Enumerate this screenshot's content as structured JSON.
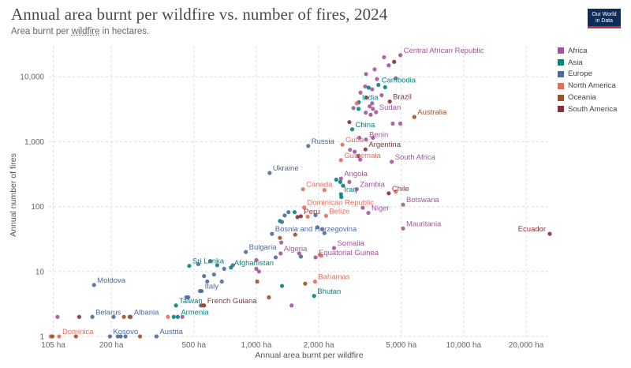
{
  "header": {
    "title": "Annual area burnt per wildfire vs. number of fires, 2024",
    "subtitle_pre": "Area burnt per ",
    "subtitle_link": "wildfire",
    "subtitle_post": " in hectares.",
    "logo_line1": "Our World",
    "logo_line2": "in Data"
  },
  "legend": [
    {
      "name": "Africa",
      "color": "#a2559c"
    },
    {
      "name": "Asia",
      "color": "#00847e"
    },
    {
      "name": "Europe",
      "color": "#4c6a9c"
    },
    {
      "name": "North America",
      "color": "#e56e5a"
    },
    {
      "name": "Oceania",
      "color": "#9a5129"
    },
    {
      "name": "South America",
      "color": "#883039"
    }
  ],
  "chart_data": {
    "type": "scatter",
    "title": "Annual area burnt per wildfire vs. number of fires, 2024",
    "xlabel": "Annual area burnt per wildfire",
    "ylabel": "Annual number of fires",
    "x_scale": "log",
    "y_scale": "log",
    "xlim": [
      100,
      26000
    ],
    "ylim": [
      1,
      30000
    ],
    "grid": true,
    "legend_position": "right",
    "x_ticks": [
      {
        "value": 105,
        "label": "105 ha"
      },
      {
        "value": 200,
        "label": "200 ha"
      },
      {
        "value": 500,
        "label": "500 ha"
      },
      {
        "value": 1000,
        "label": "1,000 ha"
      },
      {
        "value": 2000,
        "label": "2,000 ha"
      },
      {
        "value": 5000,
        "label": "5,000 ha"
      },
      {
        "value": 10000,
        "label": "10,000 ha"
      },
      {
        "value": 20000,
        "label": "20,000 ha"
      }
    ],
    "y_ticks": [
      {
        "value": 1,
        "label": "1"
      },
      {
        "value": 10,
        "label": "10"
      },
      {
        "value": 100,
        "label": "100"
      },
      {
        "value": 1000,
        "label": "1,000"
      },
      {
        "value": 10000,
        "label": "10,000"
      }
    ],
    "points": [
      {
        "label": "Central African Republic",
        "region": "Africa",
        "x": 4950,
        "y": 21500,
        "show": true
      },
      {
        "label": "Cambodia",
        "region": "Asia",
        "x": 3880,
        "y": 7500,
        "show": true
      },
      {
        "label": "Brazil",
        "region": "South America",
        "x": 4400,
        "y": 4150,
        "show": true
      },
      {
        "label": "India",
        "region": "Asia",
        "x": 3120,
        "y": 4050,
        "show": true
      },
      {
        "label": "Australia",
        "region": "Oceania",
        "x": 5780,
        "y": 2400,
        "show": true
      },
      {
        "label": "Sudan",
        "region": "Africa",
        "x": 3780,
        "y": 2850,
        "show": true
      },
      {
        "label": "China",
        "region": "Asia",
        "x": 2900,
        "y": 1550,
        "show": true
      },
      {
        "label": "Benin",
        "region": "Africa",
        "x": 3380,
        "y": 1080,
        "show": true
      },
      {
        "label": "Guba",
        "region": "North America",
        "x": 2600,
        "y": 900,
        "show": true
      },
      {
        "label": "Russia",
        "region": "Europe",
        "x": 1780,
        "y": 860,
        "show": true
      },
      {
        "label": "Argentina",
        "region": "South America",
        "x": 3360,
        "y": 760,
        "show": true
      },
      {
        "label": "Guatemala",
        "region": "North America",
        "x": 2560,
        "y": 520,
        "show": true
      },
      {
        "label": "South Africa",
        "region": "Africa",
        "x": 4500,
        "y": 490,
        "show": true
      },
      {
        "label": "Ukraine",
        "region": "Europe",
        "x": 1160,
        "y": 330,
        "show": true
      },
      {
        "label": "Angola",
        "region": "Africa",
        "x": 2560,
        "y": 270,
        "show": true
      },
      {
        "label": "Canada",
        "region": "North America",
        "x": 1680,
        "y": 185,
        "show": true
      },
      {
        "label": "Iraq",
        "region": "Asia",
        "x": 2560,
        "y": 155,
        "show": true
      },
      {
        "label": "Zambia",
        "region": "Africa",
        "x": 3050,
        "y": 185,
        "show": true
      },
      {
        "label": "Chile",
        "region": "South America",
        "x": 4350,
        "y": 160,
        "show": true
      },
      {
        "label": "Botswana",
        "region": "Africa",
        "x": 5100,
        "y": 107,
        "show": true
      },
      {
        "label": "Dominican Republic",
        "region": "North America",
        "x": 1700,
        "y": 97,
        "show": true
      },
      {
        "label": "Niger",
        "region": "Africa",
        "x": 3470,
        "y": 80,
        "show": true
      },
      {
        "label": "Peru",
        "region": "South America",
        "x": 1640,
        "y": 71,
        "show": true
      },
      {
        "label": "Belize",
        "region": "North America",
        "x": 2170,
        "y": 72,
        "show": true
      },
      {
        "label": "Mauritania",
        "region": "Africa",
        "x": 5100,
        "y": 46,
        "show": true
      },
      {
        "label": "Ecuador",
        "region": "South America",
        "x": 26000,
        "y": 38,
        "show": true
      },
      {
        "label": "Bosnia and Herzegovina",
        "region": "Europe",
        "x": 1190,
        "y": 38,
        "show": true
      },
      {
        "label": "Somalia",
        "region": "Africa",
        "x": 2370,
        "y": 23,
        "show": true
      },
      {
        "label": "Algeria",
        "region": "Africa",
        "x": 1310,
        "y": 19,
        "show": true
      },
      {
        "label": "Equatorial Guinea",
        "region": "Africa",
        "x": 1930,
        "y": 16.5,
        "show": true
      },
      {
        "label": "Bulgaria",
        "region": "Europe",
        "x": 890,
        "y": 20,
        "show": true
      },
      {
        "label": "Sri Lanka",
        "region": "Asia",
        "x": 475,
        "y": 12.2,
        "show": true
      },
      {
        "label": "Afghanistan",
        "region": "Asia",
        "x": 755,
        "y": 11.5,
        "show": true
      },
      {
        "label": "Bahamas",
        "region": "North America",
        "x": 1920,
        "y": 7,
        "show": true
      },
      {
        "label": "Moldova",
        "region": "Europe",
        "x": 165,
        "y": 6.2,
        "show": true
      },
      {
        "label": "Italy",
        "region": "Europe",
        "x": 545,
        "y": 5,
        "show": true
      },
      {
        "label": "Bhutan",
        "region": "Asia",
        "x": 1900,
        "y": 4.2,
        "show": true
      },
      {
        "label": "Taiwan",
        "region": "Asia",
        "x": 410,
        "y": 3,
        "show": true
      },
      {
        "label": "French Guiana",
        "region": "South America",
        "x": 560,
        "y": 3,
        "show": true
      },
      {
        "label": "Belarus",
        "region": "Europe",
        "x": 162,
        "y": 2,
        "show": true
      },
      {
        "label": "Albania",
        "region": "Europe",
        "x": 248,
        "y": 2,
        "show": true
      },
      {
        "label": "Armenia",
        "region": "Asia",
        "x": 418,
        "y": 2,
        "show": true
      },
      {
        "label": "Dominica",
        "region": "North America",
        "x": 112,
        "y": 1,
        "show": true
      },
      {
        "label": "Kosovo",
        "region": "Europe",
        "x": 197,
        "y": 1,
        "show": true
      },
      {
        "label": "Austria",
        "region": "Europe",
        "x": 330,
        "y": 1,
        "show": true
      },
      {
        "label": "",
        "region": "Africa",
        "x": 4130,
        "y": 20000,
        "show": false
      },
      {
        "label": "",
        "region": "Africa",
        "x": 4350,
        "y": 15000,
        "show": false
      },
      {
        "label": "",
        "region": "Africa",
        "x": 3720,
        "y": 13000,
        "show": false
      },
      {
        "label": "",
        "region": "South America",
        "x": 4620,
        "y": 17000,
        "show": false
      },
      {
        "label": "",
        "region": "Africa",
        "x": 3380,
        "y": 11000,
        "show": false
      },
      {
        "label": "",
        "region": "Africa",
        "x": 3820,
        "y": 9200,
        "show": false
      },
      {
        "label": "",
        "region": "Africa",
        "x": 4700,
        "y": 9500,
        "show": false
      },
      {
        "label": "",
        "region": "Africa",
        "x": 3350,
        "y": 7100,
        "show": false
      },
      {
        "label": "",
        "region": "Africa",
        "x": 3620,
        "y": 6400,
        "show": false
      },
      {
        "label": "",
        "region": "Africa",
        "x": 3180,
        "y": 5700,
        "show": false
      },
      {
        "label": "",
        "region": "Asia",
        "x": 3480,
        "y": 6800,
        "show": false
      },
      {
        "label": "",
        "region": "Asia",
        "x": 4180,
        "y": 6900,
        "show": false
      },
      {
        "label": "",
        "region": "Africa",
        "x": 4020,
        "y": 5200,
        "show": false
      },
      {
        "label": "",
        "region": "South America",
        "x": 3390,
        "y": 4800,
        "show": false
      },
      {
        "label": "",
        "region": "Africa",
        "x": 3620,
        "y": 3900,
        "show": false
      },
      {
        "label": "",
        "region": "North America",
        "x": 3050,
        "y": 3900,
        "show": false
      },
      {
        "label": "",
        "region": "Africa",
        "x": 3520,
        "y": 3500,
        "show": false
      },
      {
        "label": "",
        "region": "Africa",
        "x": 3650,
        "y": 3200,
        "show": false
      },
      {
        "label": "",
        "region": "Asia",
        "x": 3110,
        "y": 3200,
        "show": false
      },
      {
        "label": "",
        "region": "Africa",
        "x": 2940,
        "y": 3300,
        "show": false
      },
      {
        "label": "",
        "region": "Africa",
        "x": 3370,
        "y": 2800,
        "show": false
      },
      {
        "label": "",
        "region": "Africa",
        "x": 3560,
        "y": 2600,
        "show": false
      },
      {
        "label": "",
        "region": "Africa",
        "x": 4550,
        "y": 1900,
        "show": false
      },
      {
        "label": "",
        "region": "Africa",
        "x": 4950,
        "y": 1900,
        "show": false
      },
      {
        "label": "",
        "region": "South America",
        "x": 2810,
        "y": 2000,
        "show": false
      },
      {
        "label": "",
        "region": "Africa",
        "x": 3140,
        "y": 1150,
        "show": false
      },
      {
        "label": "",
        "region": "Africa",
        "x": 3650,
        "y": 1150,
        "show": false
      },
      {
        "label": "",
        "region": "Africa",
        "x": 2830,
        "y": 750,
        "show": false
      },
      {
        "label": "",
        "region": "Africa",
        "x": 2980,
        "y": 700,
        "show": false
      },
      {
        "label": "",
        "region": "South America",
        "x": 3100,
        "y": 600,
        "show": false
      },
      {
        "label": "",
        "region": "Africa",
        "x": 3170,
        "y": 530,
        "show": false
      },
      {
        "label": "",
        "region": "Asia",
        "x": 2430,
        "y": 260,
        "show": false
      },
      {
        "label": "",
        "region": "Asia",
        "x": 2540,
        "y": 240,
        "show": false
      },
      {
        "label": "",
        "region": "Africa",
        "x": 2810,
        "y": 240,
        "show": false
      },
      {
        "label": "",
        "region": "Asia",
        "x": 2620,
        "y": 210,
        "show": false
      },
      {
        "label": "",
        "region": "North America",
        "x": 2130,
        "y": 180,
        "show": false
      },
      {
        "label": "",
        "region": "Asia",
        "x": 2570,
        "y": 140,
        "show": false
      },
      {
        "label": "",
        "region": "North America",
        "x": 4700,
        "y": 170,
        "show": false
      },
      {
        "label": "",
        "region": "Africa",
        "x": 3260,
        "y": 96,
        "show": false
      },
      {
        "label": "",
        "region": "Asia",
        "x": 1530,
        "y": 82,
        "show": false
      },
      {
        "label": "",
        "region": "Europe",
        "x": 1430,
        "y": 82,
        "show": false
      },
      {
        "label": "",
        "region": "Europe",
        "x": 1370,
        "y": 73,
        "show": false
      },
      {
        "label": "",
        "region": "South America",
        "x": 1580,
        "y": 69,
        "show": false
      },
      {
        "label": "",
        "region": "North America",
        "x": 1770,
        "y": 70,
        "show": false
      },
      {
        "label": "",
        "region": "Europe",
        "x": 1930,
        "y": 74,
        "show": false
      },
      {
        "label": "",
        "region": "Asia",
        "x": 1300,
        "y": 60,
        "show": false
      },
      {
        "label": "",
        "region": "Europe",
        "x": 1330,
        "y": 58,
        "show": false
      },
      {
        "label": "",
        "region": "Europe",
        "x": 1970,
        "y": 48,
        "show": false
      },
      {
        "label": "",
        "region": "Africa",
        "x": 2080,
        "y": 45,
        "show": false
      },
      {
        "label": "",
        "region": "Europe",
        "x": 2130,
        "y": 39,
        "show": false
      },
      {
        "label": "",
        "region": "Oceania",
        "x": 1540,
        "y": 37,
        "show": false
      },
      {
        "label": "",
        "region": "Oceania",
        "x": 1300,
        "y": 33,
        "show": false
      },
      {
        "label": "",
        "region": "Africa",
        "x": 1320,
        "y": 28,
        "show": false
      },
      {
        "label": "",
        "region": "Africa",
        "x": 1610,
        "y": 19,
        "show": false
      },
      {
        "label": "",
        "region": "Europe",
        "x": 1640,
        "y": 17,
        "show": false
      },
      {
        "label": "",
        "region": "Europe",
        "x": 1240,
        "y": 16.5,
        "show": false
      },
      {
        "label": "",
        "region": "North America",
        "x": 2020,
        "y": 18,
        "show": false
      },
      {
        "label": "",
        "region": "North America",
        "x": 2060,
        "y": 17.5,
        "show": false
      },
      {
        "label": "",
        "region": "Africa",
        "x": 1000,
        "y": 15,
        "show": false
      },
      {
        "label": "",
        "region": "Europe",
        "x": 600,
        "y": 14.5,
        "show": false
      },
      {
        "label": "",
        "region": "Europe",
        "x": 525,
        "y": 13,
        "show": false
      },
      {
        "label": "",
        "region": "Asia",
        "x": 648,
        "y": 12.5,
        "show": false
      },
      {
        "label": "",
        "region": "Europe",
        "x": 770,
        "y": 12.5,
        "show": false
      },
      {
        "label": "",
        "region": "Europe",
        "x": 700,
        "y": 11,
        "show": false
      },
      {
        "label": "",
        "region": "Africa",
        "x": 1000,
        "y": 11,
        "show": false
      },
      {
        "label": "",
        "region": "Africa",
        "x": 1030,
        "y": 10,
        "show": false
      },
      {
        "label": "",
        "region": "Europe",
        "x": 625,
        "y": 9,
        "show": false
      },
      {
        "label": "",
        "region": "Europe",
        "x": 560,
        "y": 8.5,
        "show": false
      },
      {
        "label": "",
        "region": "Europe",
        "x": 580,
        "y": 7,
        "show": false
      },
      {
        "label": "",
        "region": "Europe",
        "x": 682,
        "y": 7,
        "show": false
      },
      {
        "label": "",
        "region": "Oceania",
        "x": 1010,
        "y": 7,
        "show": false
      },
      {
        "label": "",
        "region": "Asia",
        "x": 1330,
        "y": 6,
        "show": false
      },
      {
        "label": "",
        "region": "Oceania",
        "x": 1720,
        "y": 6.5,
        "show": false
      },
      {
        "label": "",
        "region": "Europe",
        "x": 460,
        "y": 4,
        "show": false
      },
      {
        "label": "",
        "region": "Europe",
        "x": 470,
        "y": 4,
        "show": false
      },
      {
        "label": "",
        "region": "Europe",
        "x": 535,
        "y": 5,
        "show": false
      },
      {
        "label": "",
        "region": "Oceania",
        "x": 1150,
        "y": 4,
        "show": false
      },
      {
        "label": "",
        "region": "Africa",
        "x": 1480,
        "y": 3,
        "show": false
      },
      {
        "label": "",
        "region": "Europe",
        "x": 540,
        "y": 3,
        "show": false
      },
      {
        "label": "",
        "region": "Oceania",
        "x": 550,
        "y": 3,
        "show": false
      },
      {
        "label": "",
        "region": "Africa",
        "x": 110,
        "y": 2,
        "show": false
      },
      {
        "label": "",
        "region": "South America",
        "x": 140,
        "y": 2,
        "show": false
      },
      {
        "label": "",
        "region": "Europe",
        "x": 205,
        "y": 2,
        "show": false
      },
      {
        "label": "",
        "region": "Oceania",
        "x": 230,
        "y": 2,
        "show": false
      },
      {
        "label": "",
        "region": "Oceania",
        "x": 245,
        "y": 2,
        "show": false
      },
      {
        "label": "",
        "region": "North America",
        "x": 375,
        "y": 2,
        "show": false
      },
      {
        "label": "",
        "region": "Asia",
        "x": 400,
        "y": 2,
        "show": false
      },
      {
        "label": "",
        "region": "Africa",
        "x": 440,
        "y": 2,
        "show": false
      },
      {
        "label": "",
        "region": "North America",
        "x": 102,
        "y": 1,
        "show": false
      },
      {
        "label": "",
        "region": "Oceania",
        "x": 104,
        "y": 1,
        "show": false
      },
      {
        "label": "",
        "region": "Oceania",
        "x": 135,
        "y": 1,
        "show": false
      },
      {
        "label": "",
        "region": "Europe",
        "x": 215,
        "y": 1,
        "show": false
      },
      {
        "label": "",
        "region": "Europe",
        "x": 222,
        "y": 1,
        "show": false
      },
      {
        "label": "",
        "region": "Europe",
        "x": 234,
        "y": 1,
        "show": false
      },
      {
        "label": "",
        "region": "Oceania",
        "x": 275,
        "y": 1,
        "show": false
      }
    ]
  }
}
